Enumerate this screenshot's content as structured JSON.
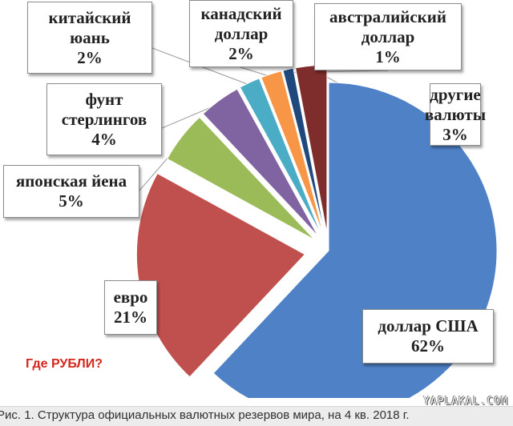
{
  "chart_data": {
    "type": "pie",
    "title": "",
    "caption": "Рис. 1. Структура официальных валютных резервов мира, на 4 кв. 2018 г.",
    "slices": [
      {
        "label_lines": [
          "доллар США"
        ],
        "value": 62,
        "value_text": "62%",
        "color": "#4f81c7"
      },
      {
        "label_lines": [
          "евро"
        ],
        "value": 21,
        "value_text": "21%",
        "color": "#c0504d"
      },
      {
        "label_lines": [
          "японская йена"
        ],
        "value": 5,
        "value_text": "5%",
        "color": "#9bbb59"
      },
      {
        "label_lines": [
          "фунт",
          "стерлингов"
        ],
        "value": 4,
        "value_text": "4%",
        "color": "#8064a2"
      },
      {
        "label_lines": [
          "китайский",
          "юань"
        ],
        "value": 2,
        "value_text": "2%",
        "color": "#4bacc6"
      },
      {
        "label_lines": [
          "канадский",
          "доллар"
        ],
        "value": 2,
        "value_text": "2%",
        "color": "#f79646"
      },
      {
        "label_lines": [
          "австралийский",
          "доллар"
        ],
        "value": 1,
        "value_text": "1%",
        "color": "#1f497d"
      },
      {
        "label_lines": [
          "другие",
          "валюты"
        ],
        "value": 3,
        "value_text": "3%",
        "color": "#7f2c2c"
      }
    ],
    "legend": "none",
    "data_labels": "callouts"
  },
  "annotation": "Где РУБЛИ?",
  "watermark": "YAPLAKAL.COM"
}
